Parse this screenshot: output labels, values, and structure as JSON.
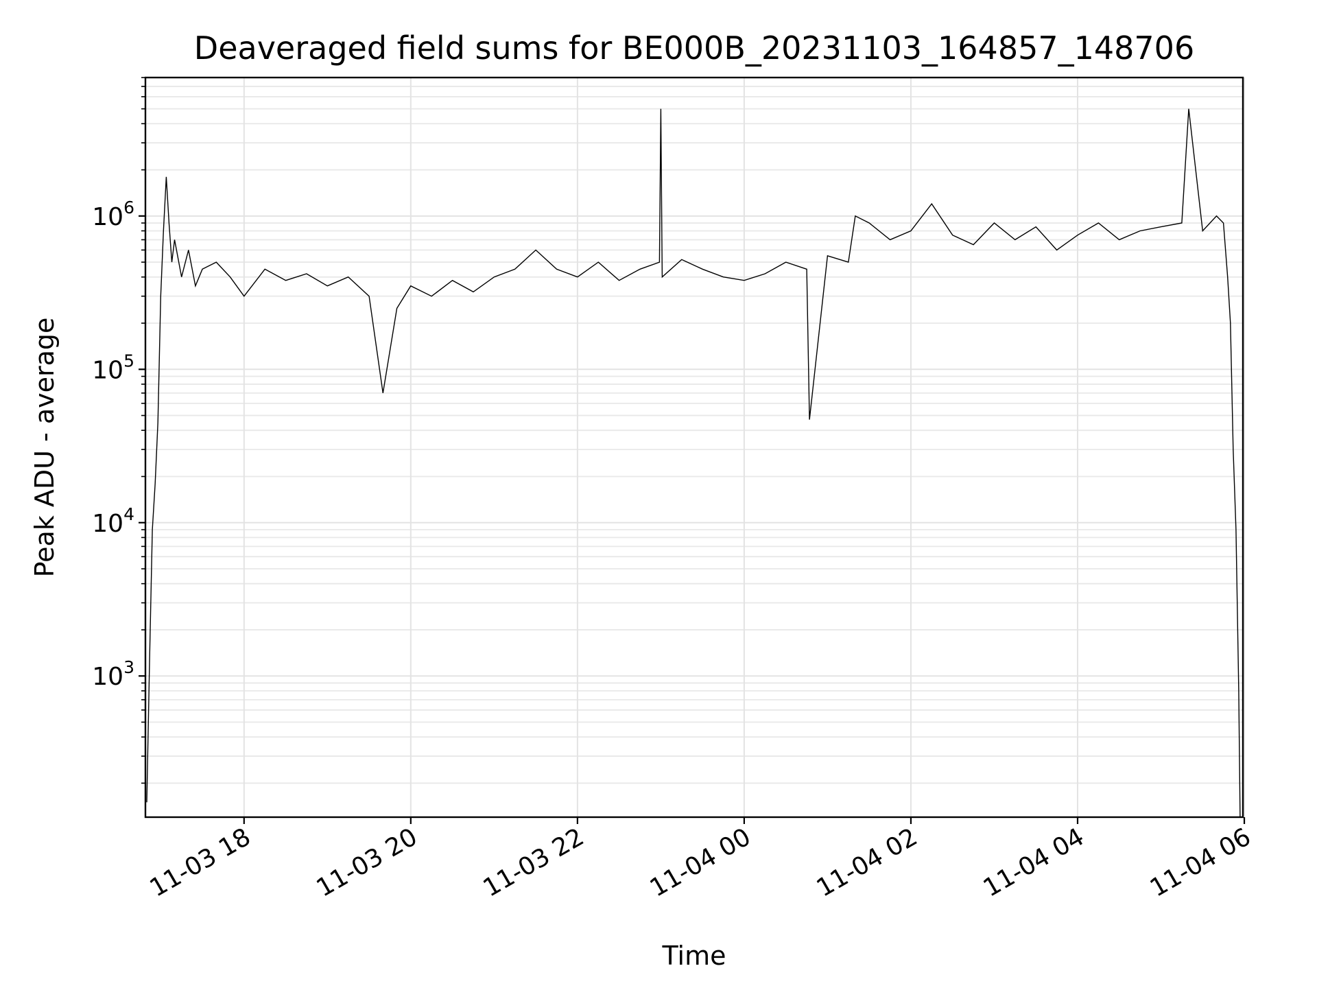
{
  "chart_data": {
    "type": "line",
    "title": "Deaveraged field sums for BE000B_20231103_164857_148706",
    "xlabel": "Time",
    "ylabel": "Peak ADU - average",
    "x_axis_type": "datetime",
    "y_scale": "log",
    "grid": "on (major and minor)",
    "xlim": [
      "2023-11-03 16:49",
      "2023-11-04 05:59"
    ],
    "ylim": [
      120,
      8000000
    ],
    "x_ticks": [
      {
        "value": "2023-11-03 18:00",
        "label": "11-03 18"
      },
      {
        "value": "2023-11-03 20:00",
        "label": "11-03 20"
      },
      {
        "value": "2023-11-03 22:00",
        "label": "11-03 22"
      },
      {
        "value": "2023-11-04 00:00",
        "label": "11-04 00"
      },
      {
        "value": "2023-11-04 02:00",
        "label": "11-04 02"
      },
      {
        "value": "2023-11-04 04:00",
        "label": "11-04 04"
      },
      {
        "value": "2023-11-04 06:00",
        "label": "11-04 06"
      }
    ],
    "y_ticks": [
      {
        "value": 1000,
        "base": "10",
        "exp": "3"
      },
      {
        "value": 10000,
        "base": "10",
        "exp": "4"
      },
      {
        "value": 100000,
        "base": "10",
        "exp": "5"
      },
      {
        "value": 1000000,
        "base": "10",
        "exp": "6"
      }
    ],
    "series": [
      {
        "color": "#000000",
        "x": [
          "2023-11-03 16:50",
          "2023-11-03 16:52",
          "2023-11-03 16:54",
          "2023-11-03 16:56",
          "2023-11-03 16:58",
          "2023-11-03 17:00",
          "2023-11-03 17:02",
          "2023-11-03 17:04",
          "2023-11-03 17:06",
          "2023-11-03 17:08",
          "2023-11-03 17:10",
          "2023-11-03 17:15",
          "2023-11-03 17:20",
          "2023-11-03 17:25",
          "2023-11-03 17:30",
          "2023-11-03 17:40",
          "2023-11-03 17:50",
          "2023-11-03 18:00",
          "2023-11-03 18:15",
          "2023-11-03 18:30",
          "2023-11-03 18:45",
          "2023-11-03 19:00",
          "2023-11-03 19:15",
          "2023-11-03 19:30",
          "2023-11-03 19:40",
          "2023-11-03 19:50",
          "2023-11-03 20:00",
          "2023-11-03 20:15",
          "2023-11-03 20:30",
          "2023-11-03 20:45",
          "2023-11-03 21:00",
          "2023-11-03 21:15",
          "2023-11-03 21:30",
          "2023-11-03 21:45",
          "2023-11-03 22:00",
          "2023-11-03 22:15",
          "2023-11-03 22:30",
          "2023-11-03 22:45",
          "2023-11-03 22:59",
          "2023-11-03 23:00",
          "2023-11-03 23:01",
          "2023-11-03 23:15",
          "2023-11-03 23:30",
          "2023-11-03 23:45",
          "2023-11-04 00:00",
          "2023-11-04 00:15",
          "2023-11-04 00:30",
          "2023-11-04 00:45",
          "2023-11-04 00:47",
          "2023-11-04 01:00",
          "2023-11-04 01:15",
          "2023-11-04 01:20",
          "2023-11-04 01:30",
          "2023-11-04 01:45",
          "2023-11-04 02:00",
          "2023-11-04 02:15",
          "2023-11-04 02:30",
          "2023-11-04 02:45",
          "2023-11-04 03:00",
          "2023-11-04 03:15",
          "2023-11-04 03:30",
          "2023-11-04 03:45",
          "2023-11-04 04:00",
          "2023-11-04 04:15",
          "2023-11-04 04:30",
          "2023-11-04 04:45",
          "2023-11-04 05:00",
          "2023-11-04 05:15",
          "2023-11-04 05:20",
          "2023-11-04 05:30",
          "2023-11-04 05:40",
          "2023-11-04 05:45",
          "2023-11-04 05:48",
          "2023-11-04 05:50",
          "2023-11-04 05:52",
          "2023-11-04 05:54",
          "2023-11-04 05:56",
          "2023-11-04 05:57",
          "2023-11-04 05:58"
        ],
        "y": [
          150,
          1300,
          9000,
          18000,
          45000,
          300000,
          800000,
          1800000,
          900000,
          500000,
          700000,
          400000,
          600000,
          350000,
          450000,
          500000,
          400000,
          300000,
          450000,
          380000,
          420000,
          350000,
          400000,
          300000,
          70000,
          250000,
          350000,
          300000,
          380000,
          320000,
          400000,
          450000,
          600000,
          450000,
          400000,
          500000,
          380000,
          450000,
          500000,
          5000000,
          400000,
          520000,
          450000,
          400000,
          380000,
          420000,
          500000,
          450000,
          47000,
          550000,
          500000,
          1000000,
          900000,
          700000,
          800000,
          1200000,
          750000,
          650000,
          900000,
          700000,
          850000,
          600000,
          750000,
          900000,
          700000,
          800000,
          850000,
          900000,
          5000000,
          800000,
          1000000,
          900000,
          400000,
          200000,
          30000,
          9000,
          800,
          120,
          120
        ]
      }
    ]
  }
}
